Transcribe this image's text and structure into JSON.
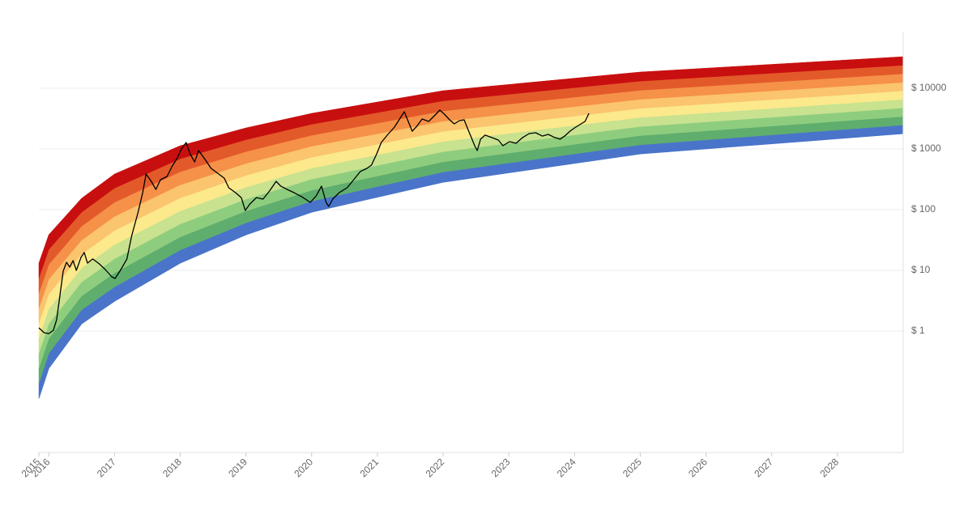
{
  "chart_data": {
    "type": "line",
    "log": true,
    "grid": true,
    "ylim": [
      0.01,
      100000
    ],
    "yticks": [
      {
        "value": 1,
        "label": "$ 1"
      },
      {
        "value": 10,
        "label": "$ 10"
      },
      {
        "value": 100,
        "label": "$ 100"
      },
      {
        "value": 1000,
        "label": "$ 1000"
      },
      {
        "value": 10000,
        "label": "$ 10000"
      }
    ],
    "xlim": [
      2015.85,
      2029
    ],
    "xticks": [
      {
        "value": 2015.85,
        "label": "2015"
      },
      2016,
      2017,
      2018,
      2019,
      2020,
      2021,
      2022,
      2023,
      2024,
      2025,
      2026,
      2027,
      2028
    ],
    "bands": {
      "x": [
        2015.85,
        2016,
        2016.5,
        2017,
        2018,
        2019,
        2020,
        2022,
        2025,
        2029
      ],
      "colors": [
        "#4a74c9",
        "#5fae6e",
        "#8fcd7e",
        "#c8e28f",
        "#fbe98c",
        "#fbc46e",
        "#f59148",
        "#e35a2a",
        "#c80f0f"
      ],
      "edges": [
        [
          0.0782,
          0.244,
          1.32,
          3.11,
          13.2,
          38.6,
          91.2,
          284,
          832,
          1790
        ],
        [
          0.138,
          0.428,
          2.24,
          5.32,
          21.6,
          60.7,
          138,
          417,
          1170,
          2480
        ],
        [
          0.244,
          0.752,
          3.79,
          9.08,
          35.5,
          95.1,
          209,
          614,
          1660,
          3420
        ],
        [
          0.432,
          1.32,
          6.44,
          15.5,
          58.1,
          149,
          318,
          902,
          2340,
          4730
        ],
        [
          0.764,
          2.32,
          10.9,
          26.5,
          95.3,
          234,
          482,
          1330,
          3300,
          6550
        ],
        [
          1.35,
          4.06,
          18.5,
          45.3,
          156,
          367,
          731,
          1950,
          4660,
          9040
        ],
        [
          2.38,
          7.13,
          31.5,
          77.4,
          256,
          577,
          1110,
          2860,
          6580,
          12500
        ],
        [
          4.22,
          12.5,
          53.3,
          132,
          421,
          904,
          1680,
          4220,
          9270,
          17300
        ],
        [
          7.45,
          22.0,
          90.6,
          226,
          689,
          1420,
          2550,
          6190,
          13100,
          23900
        ],
        [
          13.2,
          38.6,
          154,
          386,
          1130,
          2220,
          3860,
          9120,
          18500,
          33100
        ]
      ]
    },
    "series": [
      {
        "color": "#000000",
        "x": [
          2015.85,
          2015.93,
          2016.0,
          2016.07,
          2016.12,
          2016.17,
          2016.22,
          2016.27,
          2016.32,
          2016.37,
          2016.42,
          2016.49,
          2016.54,
          2016.59,
          2016.67,
          2016.77,
          2016.86,
          2016.96,
          2017.01,
          2017.09,
          2017.19,
          2017.26,
          2017.36,
          2017.43,
          2017.48,
          2017.56,
          2017.63,
          2017.7,
          2017.8,
          2017.88,
          2017.95,
          2018.02,
          2018.09,
          2018.15,
          2018.22,
          2018.28,
          2018.37,
          2018.47,
          2018.57,
          2018.67,
          2018.74,
          2018.84,
          2018.93,
          2018.99,
          2019.06,
          2019.16,
          2019.26,
          2019.36,
          2019.46,
          2019.53,
          2019.63,
          2019.73,
          2019.85,
          2019.98,
          2020.07,
          2020.15,
          2020.22,
          2020.26,
          2020.32,
          2020.42,
          2020.54,
          2020.64,
          2020.74,
          2020.84,
          2020.91,
          2020.99,
          2021.06,
          2021.16,
          2021.26,
          2021.33,
          2021.41,
          2021.47,
          2021.53,
          2021.6,
          2021.68,
          2021.78,
          2021.88,
          2021.95,
          2022.02,
          2022.1,
          2022.17,
          2022.25,
          2022.32,
          2022.38,
          2022.43,
          2022.48,
          2022.52,
          2022.57,
          2022.64,
          2022.74,
          2022.84,
          2022.91,
          2023.01,
          2023.11,
          2023.21,
          2023.31,
          2023.41,
          2023.51,
          2023.6,
          2023.7,
          2023.78,
          2023.85,
          2023.93,
          2024.0,
          2024.1,
          2024.16,
          2024.22
        ],
        "values": [
          1.13,
          0.94,
          0.91,
          1.03,
          1.54,
          3.86,
          9.7,
          13.6,
          11.3,
          14.5,
          10.0,
          16.3,
          19.7,
          13.2,
          15.4,
          12.8,
          10.3,
          7.82,
          7.36,
          10.0,
          15.4,
          36.3,
          91.2,
          191,
          386,
          293,
          215,
          311,
          352,
          525,
          692,
          1000,
          1280,
          832,
          612,
          940,
          692,
          479,
          398,
          331,
          229,
          191,
          158,
          97.0,
          124,
          158,
          149,
          203,
          293,
          244,
          215,
          191,
          163,
          132,
          169,
          244,
          132,
          113,
          149,
          191,
          229,
          311,
          424,
          479,
          541,
          832,
          1280,
          1740,
          2290,
          3020,
          4100,
          2840,
          1960,
          2360,
          3110,
          2840,
          3630,
          4370,
          3740,
          3020,
          2590,
          2930,
          3020,
          2090,
          1540,
          1130,
          940,
          1450,
          1690,
          1540,
          1400,
          1130,
          1320,
          1240,
          1540,
          1790,
          1850,
          1630,
          1740,
          1540,
          1450,
          1630,
          1960,
          2220,
          2590,
          2840,
          3860
        ]
      }
    ]
  }
}
